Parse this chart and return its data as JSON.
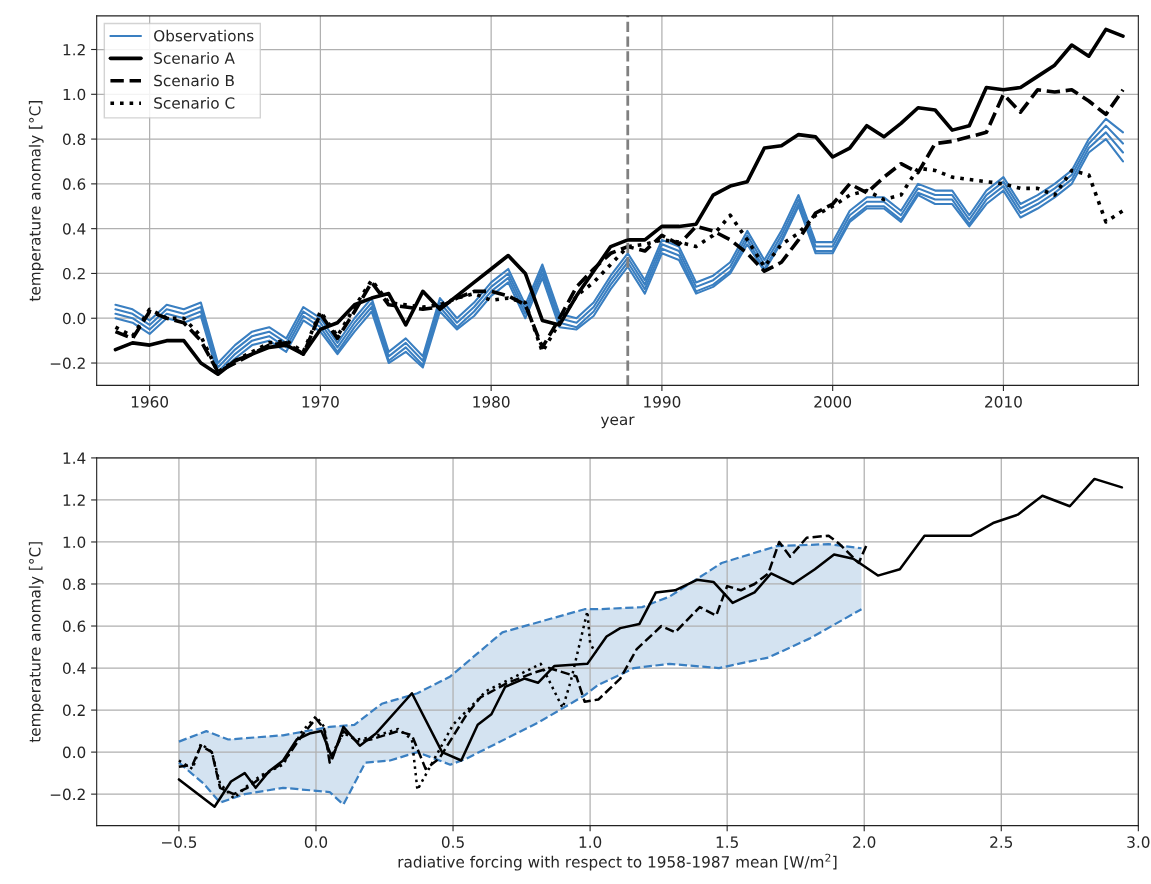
{
  "chart_data": [
    {
      "type": "line",
      "xlabel": "year",
      "ylabel": "temperature anomaly [°C]",
      "xlim": [
        1956.9,
        2017.9
      ],
      "ylim": [
        -0.3,
        1.35
      ],
      "xticks": [
        1960,
        1970,
        1980,
        1990,
        2000,
        2010
      ],
      "yticks": [
        {
          "value": -0.2,
          "label": "−0.2"
        },
        {
          "value": 0,
          "label": "0.0"
        },
        0.2,
        0.4,
        0.6,
        0.8,
        {
          "value": 1,
          "label": "1.0"
        },
        1.2
      ],
      "grid": true,
      "legend": "top left",
      "x": [
        1958,
        1959,
        1960,
        1961,
        1962,
        1963,
        1964,
        1965,
        1966,
        1967,
        1968,
        1969,
        1970,
        1971,
        1972,
        1973,
        1974,
        1975,
        1976,
        1977,
        1978,
        1979,
        1980,
        1981,
        1982,
        1983,
        1984,
        1985,
        1986,
        1987,
        1988,
        1989,
        1990,
        1991,
        1992,
        1993,
        1994,
        1995,
        1996,
        1997,
        1998,
        1999,
        2000,
        2001,
        2002,
        2003,
        2004,
        2005,
        2006,
        2007,
        2008,
        2009,
        2010,
        2011,
        2012,
        2013,
        2014,
        2015,
        2016,
        2017
      ],
      "ref_lines": [
        {
          "axis": "x",
          "value": 1988,
          "color": "#808080",
          "line_style": "dashed"
        }
      ],
      "series": [
        {
          "name": "Observations",
          "color": "#3a7fc1",
          "line_style": "solid",
          "values": [
            0.06,
            0.04,
            -0.01,
            0.06,
            0.04,
            0.07,
            -0.2,
            -0.12,
            -0.06,
            -0.04,
            -0.09,
            0.05,
            0.0,
            -0.11,
            0.0,
            0.09,
            -0.15,
            -0.09,
            -0.17,
            0.09,
            0.0,
            0.07,
            0.16,
            0.22,
            0.06,
            0.24,
            0.02,
            0.0,
            0.07,
            0.19,
            0.29,
            0.17,
            0.35,
            0.32,
            0.16,
            0.19,
            0.25,
            0.39,
            0.26,
            0.39,
            0.55,
            0.34,
            0.34,
            0.48,
            0.54,
            0.54,
            0.48,
            0.6,
            0.57,
            0.57,
            0.46,
            0.57,
            0.63,
            0.51,
            0.55,
            0.6,
            0.66,
            0.8,
            0.89,
            0.83
          ]
        },
        {
          "color": "#3a7fc1",
          "line_style": "solid",
          "values": [
            0.04,
            0.02,
            -0.03,
            0.04,
            0.02,
            0.05,
            -0.22,
            -0.14,
            -0.08,
            -0.06,
            -0.11,
            0.03,
            -0.02,
            -0.13,
            -0.02,
            0.07,
            -0.17,
            -0.11,
            -0.19,
            0.07,
            -0.02,
            0.05,
            0.14,
            0.2,
            0.04,
            0.22,
            0.0,
            -0.02,
            0.05,
            0.17,
            0.27,
            0.15,
            0.33,
            0.3,
            0.14,
            0.17,
            0.23,
            0.37,
            0.24,
            0.37,
            0.53,
            0.32,
            0.32,
            0.46,
            0.52,
            0.52,
            0.46,
            0.58,
            0.55,
            0.55,
            0.44,
            0.55,
            0.61,
            0.49,
            0.53,
            0.58,
            0.64,
            0.78,
            0.86,
            0.78
          ]
        },
        {
          "color": "#3a7fc1",
          "line_style": "solid",
          "values": [
            0.02,
            0.0,
            -0.05,
            0.02,
            0.0,
            0.03,
            -0.24,
            -0.16,
            -0.1,
            -0.08,
            -0.13,
            0.01,
            -0.04,
            -0.15,
            -0.04,
            0.05,
            -0.19,
            -0.13,
            -0.21,
            0.05,
            -0.04,
            0.03,
            0.12,
            0.18,
            0.02,
            0.2,
            -0.02,
            -0.04,
            0.03,
            0.15,
            0.25,
            0.13,
            0.31,
            0.28,
            0.12,
            0.15,
            0.21,
            0.35,
            0.22,
            0.35,
            0.51,
            0.3,
            0.3,
            0.44,
            0.5,
            0.5,
            0.44,
            0.56,
            0.53,
            0.53,
            0.42,
            0.53,
            0.59,
            0.47,
            0.51,
            0.56,
            0.62,
            0.76,
            0.83,
            0.74
          ]
        },
        {
          "color": "#3a7fc1",
          "line_style": "solid",
          "values": [
            0.0,
            -0.02,
            -0.07,
            0.0,
            -0.02,
            0.01,
            -0.25,
            -0.18,
            -0.12,
            -0.1,
            -0.15,
            -0.01,
            -0.06,
            -0.16,
            -0.06,
            0.03,
            -0.2,
            -0.15,
            -0.22,
            0.03,
            -0.05,
            0.01,
            0.1,
            0.16,
            0.0,
            0.18,
            -0.04,
            -0.05,
            0.01,
            0.13,
            0.23,
            0.11,
            0.29,
            0.26,
            0.11,
            0.14,
            0.2,
            0.33,
            0.21,
            0.34,
            0.5,
            0.29,
            0.29,
            0.43,
            0.49,
            0.49,
            0.43,
            0.55,
            0.51,
            0.51,
            0.41,
            0.51,
            0.57,
            0.45,
            0.49,
            0.54,
            0.6,
            0.74,
            0.8,
            0.7
          ]
        },
        {
          "name": "Scenario A",
          "color": "#000000",
          "line_style": "solid",
          "values": [
            -0.14,
            -0.11,
            -0.12,
            -0.1,
            -0.1,
            -0.2,
            -0.25,
            -0.19,
            -0.16,
            -0.13,
            -0.12,
            -0.16,
            -0.05,
            -0.02,
            0.06,
            0.09,
            0.11,
            -0.03,
            0.12,
            0.04,
            0.1,
            0.16,
            0.22,
            0.28,
            0.2,
            -0.01,
            -0.03,
            0.1,
            0.21,
            0.32,
            0.35,
            0.35,
            0.41,
            0.41,
            0.42,
            0.55,
            0.59,
            0.61,
            0.76,
            0.77,
            0.82,
            0.81,
            0.72,
            0.76,
            0.86,
            0.81,
            0.87,
            0.94,
            0.93,
            0.84,
            0.86,
            1.03,
            1.02,
            1.03,
            1.08,
            1.13,
            1.22,
            1.17,
            1.29,
            1.26
          ]
        },
        {
          "name": "Scenario B",
          "color": "#000000",
          "line_style": "dashed",
          "values": [
            -0.06,
            -0.09,
            0.03,
            0.0,
            -0.02,
            -0.1,
            -0.24,
            -0.2,
            -0.16,
            -0.12,
            -0.11,
            -0.16,
            0.02,
            -0.09,
            0.03,
            0.16,
            0.06,
            0.05,
            0.04,
            0.05,
            0.09,
            0.12,
            0.12,
            0.1,
            0.06,
            -0.13,
            0.0,
            0.14,
            0.22,
            0.29,
            0.32,
            0.3,
            0.37,
            0.33,
            0.41,
            0.39,
            0.35,
            0.29,
            0.21,
            0.25,
            0.35,
            0.47,
            0.51,
            0.6,
            0.56,
            0.63,
            0.69,
            0.65,
            0.78,
            0.79,
            0.81,
            0.83,
            1.0,
            0.92,
            1.02,
            1.01,
            1.02,
            0.97,
            0.91,
            1.02
          ]
        },
        {
          "name": "Scenario C",
          "color": "#000000",
          "line_style": "dotted",
          "values": [
            -0.04,
            -0.08,
            0.04,
            0.0,
            0.0,
            -0.08,
            -0.24,
            -0.19,
            -0.15,
            -0.11,
            -0.1,
            -0.15,
            0.03,
            -0.08,
            0.05,
            0.17,
            0.07,
            0.06,
            0.05,
            0.06,
            0.09,
            0.11,
            0.08,
            0.09,
            0.07,
            -0.15,
            -0.02,
            0.1,
            0.16,
            0.24,
            0.32,
            0.33,
            0.35,
            0.34,
            0.32,
            0.37,
            0.46,
            0.35,
            0.23,
            0.33,
            0.38,
            0.46,
            0.5,
            0.55,
            0.57,
            0.53,
            0.55,
            0.67,
            0.66,
            0.63,
            0.62,
            0.61,
            0.6,
            0.58,
            0.58,
            0.55,
            0.66,
            0.64,
            0.43,
            0.48
          ]
        }
      ]
    },
    {
      "type": "line",
      "xlabel": "radiative forcing with respect to 1958-1987 mean [W/m$^{2}$]",
      "ylabel": "temperature anomaly [°C]",
      "xlim": [
        -0.8,
        3.0
      ],
      "ylim": [
        -0.35,
        1.4
      ],
      "xticks": [
        {
          "value": -0.5,
          "label": "−0.5"
        },
        {
          "value": 0,
          "label": "0.0"
        },
        0.5,
        {
          "value": 1,
          "label": "1.0"
        },
        1.5,
        {
          "value": 2,
          "label": "2.0"
        },
        2.5,
        {
          "value": 3,
          "label": "3.0"
        }
      ],
      "yticks": [
        {
          "value": -0.2,
          "label": "−0.2"
        },
        {
          "value": 0,
          "label": "0.0"
        },
        0.2,
        0.4,
        0.6,
        0.8,
        {
          "value": 1,
          "label": "1.0"
        },
        1.2,
        1.4
      ],
      "grid": true,
      "series": [
        {
          "color": "#3a7fc1",
          "line_style": "dashed",
          "x": [
            -0.5,
            -0.4,
            -0.32,
            -0.12,
            0.05,
            0.14,
            0.24,
            0.37,
            0.49,
            0.68,
            0.98,
            1.03,
            1.19,
            1.29,
            1.48,
            1.68,
            1.87,
            1.99
          ],
          "values": [
            0.05,
            0.1,
            0.06,
            0.08,
            0.12,
            0.13,
            0.23,
            0.28,
            0.36,
            0.57,
            0.68,
            0.68,
            0.69,
            0.74,
            0.9,
            0.98,
            0.99,
            0.97
          ]
        },
        {
          "color": "#3a7fc1",
          "line_style": "dashed",
          "x": [
            -0.5,
            -0.41,
            -0.35,
            -0.26,
            -0.12,
            0.05,
            0.1,
            0.18,
            0.27,
            0.37,
            0.49,
            0.55,
            0.81,
            0.98,
            1.03,
            1.16,
            1.29,
            1.47,
            1.65,
            1.8,
            1.99
          ],
          "values": [
            -0.05,
            -0.15,
            -0.24,
            -0.2,
            -0.17,
            -0.19,
            -0.25,
            -0.05,
            -0.04,
            0.0,
            -0.06,
            -0.03,
            0.14,
            0.27,
            0.32,
            0.4,
            0.42,
            0.4,
            0.45,
            0.54,
            0.68
          ]
        },
        {
          "color": "#000000",
          "line_style": "solid",
          "x": [
            -0.5,
            -0.37,
            -0.31,
            -0.26,
            -0.22,
            -0.17,
            -0.12,
            -0.07,
            -0.02,
            0.02,
            0.06,
            0.1,
            0.16,
            0.22,
            0.35,
            0.46,
            0.53,
            0.59,
            0.64,
            0.69,
            0.76,
            0.81,
            0.87,
            0.99,
            1.06,
            1.11,
            1.18,
            1.24,
            1.31,
            1.39,
            1.45,
            1.52,
            1.6,
            1.66,
            1.74,
            1.82,
            1.89,
            1.96,
            2.05,
            2.13,
            2.22,
            2.3,
            2.39,
            2.47,
            2.56,
            2.65,
            2.75,
            2.84,
            2.94
          ],
          "values": [
            -0.13,
            -0.26,
            -0.14,
            -0.1,
            -0.17,
            -0.09,
            -0.04,
            0.06,
            0.09,
            0.1,
            -0.03,
            0.12,
            0.03,
            0.09,
            0.28,
            0.0,
            -0.04,
            0.13,
            0.18,
            0.31,
            0.35,
            0.33,
            0.41,
            0.42,
            0.55,
            0.59,
            0.61,
            0.76,
            0.77,
            0.82,
            0.81,
            0.71,
            0.76,
            0.85,
            0.8,
            0.87,
            0.94,
            0.92,
            0.84,
            0.87,
            1.03,
            1.03,
            1.03,
            1.09,
            1.13,
            1.22,
            1.17,
            1.3,
            1.26
          ]
        },
        {
          "color": "#000000",
          "line_style": "dashed",
          "x": [
            -0.5,
            -0.45,
            -0.42,
            -0.38,
            -0.35,
            -0.3,
            -0.25,
            -0.2,
            -0.12,
            -0.05,
            0.0,
            0.03,
            0.05,
            0.1,
            0.15,
            0.2,
            0.3,
            0.35,
            0.4,
            0.45,
            0.55,
            0.6,
            0.7,
            0.8,
            0.85,
            0.95,
            0.98,
            1.03,
            1.11,
            1.17,
            1.26,
            1.31,
            1.4,
            1.46,
            1.5,
            1.55,
            1.6,
            1.65,
            1.69,
            1.73,
            1.79,
            1.87,
            1.91,
            1.98,
            2.01
          ],
          "values": [
            -0.07,
            -0.06,
            0.03,
            0.0,
            -0.17,
            -0.2,
            -0.17,
            -0.12,
            -0.05,
            0.08,
            0.16,
            0.11,
            -0.05,
            0.1,
            0.05,
            0.06,
            0.1,
            0.08,
            -0.08,
            -0.03,
            0.18,
            0.26,
            0.33,
            0.38,
            0.4,
            0.36,
            0.24,
            0.25,
            0.35,
            0.49,
            0.6,
            0.57,
            0.69,
            0.65,
            0.79,
            0.77,
            0.8,
            0.85,
            1.0,
            0.93,
            1.02,
            1.03,
            0.99,
            0.9,
            0.99
          ]
        },
        {
          "color": "#000000",
          "line_style": "dotted",
          "x": [
            -0.5,
            -0.45,
            -0.42,
            -0.38,
            -0.35,
            -0.3,
            -0.25,
            -0.2,
            -0.12,
            -0.05,
            0.0,
            0.03,
            0.05,
            0.1,
            0.15,
            0.2,
            0.3,
            0.35,
            0.37,
            0.5,
            0.62,
            0.82,
            0.9,
            0.93,
            0.99,
            1.0,
            1.02
          ],
          "values": [
            -0.04,
            -0.08,
            0.04,
            0.0,
            -0.15,
            -0.22,
            -0.16,
            -0.11,
            -0.06,
            0.1,
            0.17,
            0.12,
            -0.03,
            0.09,
            0.06,
            0.07,
            0.11,
            0.06,
            -0.18,
            0.13,
            0.29,
            0.42,
            0.21,
            0.34,
            0.67,
            0.52,
            0.47
          ]
        }
      ]
    }
  ]
}
